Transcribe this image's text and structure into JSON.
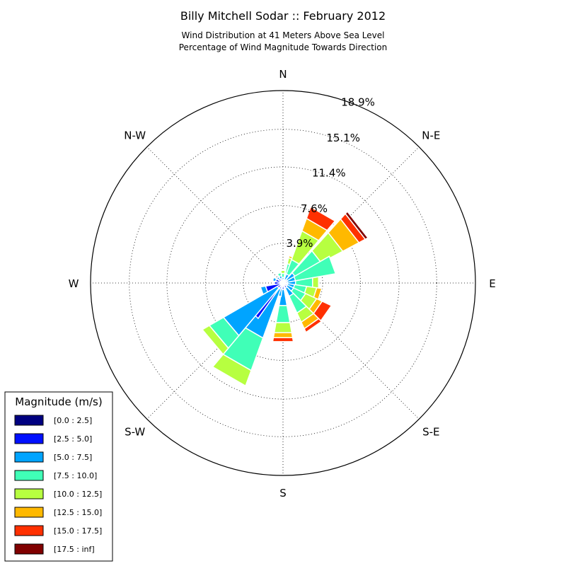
{
  "chart_data": {
    "type": "windrose",
    "title": "Billy Mitchell Sodar :: February 2012",
    "subtitle_lines": [
      "Wind Distribution at 41 Meters Above Sea Level",
      "Percentage of Wind Magnitude Towards Direction"
    ],
    "directions": [
      {
        "key": "n",
        "label": "N"
      },
      {
        "key": "ne",
        "label": "N-E"
      },
      {
        "key": "e",
        "label": "E"
      },
      {
        "key": "se",
        "label": "S-E"
      },
      {
        "key": "s",
        "label": "S"
      },
      {
        "key": "sw",
        "label": "S-W"
      },
      {
        "key": "w",
        "label": "W"
      },
      {
        "key": "nw",
        "label": "N-W"
      }
    ],
    "radial_ticks": [
      {
        "value": 3.9,
        "label": "3.9%"
      },
      {
        "value": 7.6,
        "label": "7.6%"
      },
      {
        "value": 11.4,
        "label": "11.4%"
      },
      {
        "value": 15.1,
        "label": "15.1%"
      },
      {
        "value": 18.9,
        "label": "18.9%"
      }
    ],
    "rmax": 18.9,
    "grid": true,
    "legend": {
      "title": "Magnitude (m/s)",
      "placement": "lower-left",
      "bins": [
        {
          "label": "[0.0 : 2.5]",
          "color": "#000080"
        },
        {
          "label": "[2.5 : 5.0]",
          "color": "#0010ff"
        },
        {
          "label": "[5.0 : 7.5]",
          "color": "#00a4ff"
        },
        {
          "label": "[7.5 : 10.0]",
          "color": "#40ffb7"
        },
        {
          "label": "[10.0 : 12.5]",
          "color": "#b7ff40"
        },
        {
          "label": "[12.5 : 15.0]",
          "color": "#ffb900"
        },
        {
          "label": "[15.0 : 17.5]",
          "color": "#ff3000"
        },
        {
          "label": "[17.5 : inf]",
          "color": "#800000"
        }
      ]
    },
    "sector_width_deg": 20,
    "sectors": [
      {
        "direction_deg": 0,
        "values": [
          0.05,
          0.2,
          0.3,
          0.4,
          0.3,
          0.0,
          0.0,
          0.0
        ]
      },
      {
        "direction_deg": 22.5,
        "values": [
          0.05,
          0.3,
          0.6,
          1.0,
          0.6,
          0.2,
          0.0,
          0.0
        ]
      },
      {
        "direction_deg": 30,
        "values": [
          0.05,
          0.3,
          0.6,
          1.5,
          3.0,
          1.3,
          1.2,
          0.0
        ]
      },
      {
        "direction_deg": 52,
        "values": [
          0.05,
          0.4,
          0.9,
          2.9,
          2.4,
          1.8,
          0.7,
          0.3
        ]
      },
      {
        "direction_deg": 70,
        "values": [
          0.05,
          0.4,
          0.8,
          4.0,
          0.0,
          0.0,
          0.0,
          0.0
        ]
      },
      {
        "direction_deg": 90,
        "values": [
          0.05,
          0.4,
          0.8,
          1.7,
          0.6,
          0.0,
          0.0,
          0.0
        ]
      },
      {
        "direction_deg": 108,
        "values": [
          0.05,
          0.4,
          0.7,
          1.2,
          1.0,
          0.5,
          0.0,
          0.0
        ]
      },
      {
        "direction_deg": 125,
        "values": [
          0.05,
          0.4,
          0.7,
          1.3,
          1.2,
          0.6,
          1.0,
          0.0
        ]
      },
      {
        "direction_deg": 145,
        "values": [
          0.05,
          0.5,
          0.9,
          1.8,
          1.0,
          0.7,
          0.4,
          0.0
        ]
      },
      {
        "direction_deg": 180,
        "values": [
          0.05,
          0.6,
          1.6,
          1.7,
          1.0,
          0.5,
          0.4,
          0.0
        ]
      },
      {
        "direction_deg": 198,
        "values": [
          0.05,
          0.5,
          0.8,
          0.0,
          0.0,
          0.0,
          0.0,
          0.0
        ]
      },
      {
        "direction_deg": 210,
        "values": [
          0.05,
          0.6,
          5.1,
          3.4,
          1.6,
          0.0,
          0.0,
          0.0
        ]
      },
      {
        "direction_deg": 225,
        "values": [
          0.05,
          4.2,
          0.0,
          0.0,
          0.0,
          0.0,
          0.0,
          0.0
        ]
      },
      {
        "direction_deg": 230,
        "values": [
          0.05,
          0.6,
          6.1,
          1.6,
          0.8,
          0.0,
          0.0,
          0.0
        ]
      },
      {
        "direction_deg": 250,
        "values": [
          0.05,
          1.7,
          0.5,
          0.0,
          0.0,
          0.0,
          0.0,
          0.0
        ]
      },
      {
        "direction_deg": 270,
        "values": [
          0.05,
          0.8,
          0.0,
          0.0,
          0.0,
          0.0,
          0.0,
          0.0
        ]
      },
      {
        "direction_deg": 292,
        "values": [
          0.05,
          0.7,
          0.3,
          0.0,
          0.0,
          0.0,
          0.0,
          0.0
        ]
      },
      {
        "direction_deg": 315,
        "values": [
          0.05,
          0.5,
          0.2,
          0.0,
          0.0,
          0.0,
          0.0,
          0.0
        ]
      },
      {
        "direction_deg": 338,
        "values": [
          0.05,
          0.4,
          0.3,
          0.3,
          0.0,
          0.0,
          0.0,
          0.0
        ]
      }
    ]
  }
}
